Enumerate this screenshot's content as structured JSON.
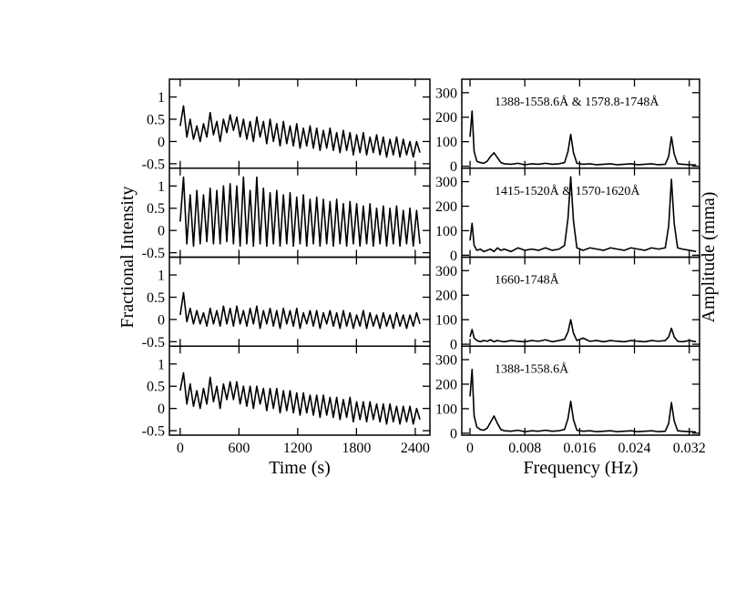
{
  "chart_data": [
    {
      "type": "line",
      "ylabel": "Fractional Intensity",
      "xlim": [
        -110,
        2550
      ],
      "ylim": [
        -0.6,
        1.4
      ],
      "xticks": [
        0,
        600,
        1200,
        1800,
        2400
      ],
      "yticks": [
        -0.5,
        0,
        0.5,
        1
      ],
      "xticklabels": false,
      "x": [
        0,
        34,
        68,
        102,
        136,
        170,
        204,
        238,
        272,
        306,
        340,
        374,
        408,
        442,
        476,
        510,
        544,
        578,
        612,
        646,
        680,
        714,
        748,
        782,
        816,
        850,
        884,
        918,
        952,
        986,
        1020,
        1054,
        1088,
        1122,
        1156,
        1190,
        1224,
        1258,
        1292,
        1326,
        1360,
        1394,
        1428,
        1462,
        1496,
        1530,
        1564,
        1598,
        1632,
        1666,
        1700,
        1734,
        1768,
        1802,
        1836,
        1870,
        1904,
        1938,
        1972,
        2006,
        2040,
        2074,
        2108,
        2142,
        2176,
        2210,
        2244,
        2278,
        2312,
        2346,
        2380,
        2414,
        2448
      ],
      "values": [
        0.35,
        0.8,
        0.1,
        0.5,
        0.05,
        0.35,
        0.0,
        0.4,
        0.1,
        0.65,
        0.15,
        0.45,
        0.0,
        0.5,
        0.2,
        0.6,
        0.25,
        0.55,
        0.1,
        0.5,
        0.05,
        0.45,
        0.0,
        0.55,
        0.1,
        0.45,
        -0.05,
        0.5,
        0.0,
        0.4,
        -0.1,
        0.45,
        -0.05,
        0.35,
        -0.1,
        0.4,
        -0.15,
        0.3,
        -0.1,
        0.35,
        -0.15,
        0.3,
        -0.2,
        0.25,
        -0.15,
        0.3,
        -0.2,
        0.2,
        -0.25,
        0.25,
        -0.2,
        0.2,
        -0.3,
        0.15,
        -0.25,
        0.2,
        -0.3,
        0.1,
        -0.25,
        0.15,
        -0.3,
        0.1,
        -0.35,
        0.05,
        -0.3,
        0.1,
        -0.35,
        0.05,
        -0.3,
        0.0,
        -0.35,
        0.0,
        -0.25
      ],
      "color": "#000000"
    },
    {
      "type": "line",
      "xlim": [
        -110,
        2550
      ],
      "ylim": [
        -0.6,
        1.4
      ],
      "xticks": [
        0,
        600,
        1200,
        1800,
        2400
      ],
      "yticks": [
        -0.5,
        0,
        0.5,
        1
      ],
      "xticklabels": false,
      "x": [
        0,
        34,
        68,
        102,
        136,
        170,
        204,
        238,
        272,
        306,
        340,
        374,
        408,
        442,
        476,
        510,
        544,
        578,
        612,
        646,
        680,
        714,
        748,
        782,
        816,
        850,
        884,
        918,
        952,
        986,
        1020,
        1054,
        1088,
        1122,
        1156,
        1190,
        1224,
        1258,
        1292,
        1326,
        1360,
        1394,
        1428,
        1462,
        1496,
        1530,
        1564,
        1598,
        1632,
        1666,
        1700,
        1734,
        1768,
        1802,
        1836,
        1870,
        1904,
        1938,
        1972,
        2006,
        2040,
        2074,
        2108,
        2142,
        2176,
        2210,
        2244,
        2278,
        2312,
        2346,
        2380,
        2414,
        2448
      ],
      "values": [
        0.2,
        1.2,
        -0.3,
        0.8,
        -0.35,
        0.9,
        -0.3,
        0.8,
        -0.25,
        0.95,
        -0.3,
        0.9,
        -0.3,
        1.0,
        -0.25,
        1.05,
        -0.3,
        1.0,
        -0.35,
        1.2,
        -0.3,
        0.9,
        -0.35,
        1.2,
        -0.3,
        0.95,
        -0.35,
        0.85,
        -0.3,
        0.9,
        -0.35,
        0.8,
        -0.3,
        0.85,
        -0.35,
        0.75,
        -0.3,
        0.8,
        -0.35,
        0.7,
        -0.3,
        0.75,
        -0.35,
        0.7,
        -0.3,
        0.65,
        -0.35,
        0.7,
        -0.3,
        0.6,
        -0.35,
        0.65,
        -0.3,
        0.6,
        -0.35,
        0.55,
        -0.3,
        0.6,
        -0.35,
        0.5,
        -0.3,
        0.55,
        -0.35,
        0.5,
        -0.3,
        0.55,
        -0.35,
        0.45,
        -0.3,
        0.5,
        -0.35,
        0.45,
        -0.3
      ],
      "color": "#000000"
    },
    {
      "type": "line",
      "xlim": [
        -110,
        2550
      ],
      "ylim": [
        -0.6,
        1.4
      ],
      "xticks": [
        0,
        600,
        1200,
        1800,
        2400
      ],
      "yticks": [
        -0.5,
        0,
        0.5,
        1
      ],
      "xticklabels": false,
      "x": [
        0,
        34,
        68,
        102,
        136,
        170,
        204,
        238,
        272,
        306,
        340,
        374,
        408,
        442,
        476,
        510,
        544,
        578,
        612,
        646,
        680,
        714,
        748,
        782,
        816,
        850,
        884,
        918,
        952,
        986,
        1020,
        1054,
        1088,
        1122,
        1156,
        1190,
        1224,
        1258,
        1292,
        1326,
        1360,
        1394,
        1428,
        1462,
        1496,
        1530,
        1564,
        1598,
        1632,
        1666,
        1700,
        1734,
        1768,
        1802,
        1836,
        1870,
        1904,
        1938,
        1972,
        2006,
        2040,
        2074,
        2108,
        2142,
        2176,
        2210,
        2244,
        2278,
        2312,
        2346,
        2380,
        2414,
        2448
      ],
      "values": [
        0.1,
        0.6,
        -0.05,
        0.25,
        -0.1,
        0.2,
        -0.1,
        0.15,
        -0.15,
        0.25,
        -0.1,
        0.2,
        -0.15,
        0.3,
        -0.1,
        0.25,
        -0.15,
        0.3,
        -0.1,
        0.2,
        -0.15,
        0.25,
        -0.1,
        0.3,
        -0.2,
        0.2,
        -0.1,
        0.25,
        -0.15,
        0.2,
        -0.2,
        0.25,
        -0.1,
        0.2,
        -0.15,
        0.25,
        -0.2,
        0.15,
        -0.1,
        0.2,
        -0.15,
        0.2,
        -0.2,
        0.15,
        -0.1,
        0.2,
        -0.15,
        0.15,
        -0.2,
        0.2,
        -0.15,
        0.15,
        -0.2,
        0.1,
        -0.15,
        0.2,
        -0.2,
        0.15,
        -0.15,
        0.1,
        -0.2,
        0.15,
        -0.15,
        0.1,
        -0.2,
        0.15,
        -0.15,
        0.1,
        -0.2,
        0.1,
        -0.15,
        0.15,
        -0.1
      ],
      "color": "#000000"
    },
    {
      "type": "line",
      "xlabel": "Time (s)",
      "xlim": [
        -110,
        2550
      ],
      "ylim": [
        -0.6,
        1.4
      ],
      "xticks": [
        0,
        600,
        1200,
        1800,
        2400
      ],
      "yticks": [
        -0.5,
        0,
        0.5,
        1
      ],
      "xticklabels": true,
      "x": [
        0,
        34,
        68,
        102,
        136,
        170,
        204,
        238,
        272,
        306,
        340,
        374,
        408,
        442,
        476,
        510,
        544,
        578,
        612,
        646,
        680,
        714,
        748,
        782,
        816,
        850,
        884,
        918,
        952,
        986,
        1020,
        1054,
        1088,
        1122,
        1156,
        1190,
        1224,
        1258,
        1292,
        1326,
        1360,
        1394,
        1428,
        1462,
        1496,
        1530,
        1564,
        1598,
        1632,
        1666,
        1700,
        1734,
        1768,
        1802,
        1836,
        1870,
        1904,
        1938,
        1972,
        2006,
        2040,
        2074,
        2108,
        2142,
        2176,
        2210,
        2244,
        2278,
        2312,
        2346,
        2380,
        2414,
        2448
      ],
      "values": [
        0.4,
        0.8,
        0.1,
        0.55,
        0.05,
        0.4,
        0.0,
        0.45,
        0.1,
        0.7,
        0.15,
        0.5,
        0.0,
        0.55,
        0.2,
        0.6,
        0.2,
        0.6,
        0.1,
        0.5,
        0.05,
        0.5,
        0.0,
        0.5,
        0.1,
        0.45,
        -0.05,
        0.45,
        0.0,
        0.45,
        -0.1,
        0.4,
        -0.05,
        0.4,
        -0.1,
        0.35,
        -0.15,
        0.35,
        -0.1,
        0.3,
        -0.15,
        0.3,
        -0.2,
        0.3,
        -0.15,
        0.25,
        -0.2,
        0.25,
        -0.25,
        0.2,
        -0.2,
        0.25,
        -0.3,
        0.15,
        -0.25,
        0.15,
        -0.3,
        0.15,
        -0.25,
        0.1,
        -0.3,
        0.1,
        -0.35,
        0.1,
        -0.3,
        0.05,
        -0.35,
        0.05,
        -0.3,
        0.05,
        -0.35,
        0.0,
        -0.25
      ],
      "color": "#000000"
    },
    {
      "type": "line",
      "ylabel": "Amplitude (mma)",
      "annotation": "1388-1558.6Å & 1578.8-1748Å",
      "xlim": [
        -0.0012,
        0.0335
      ],
      "ylim": [
        -8,
        355
      ],
      "xticks": [
        0,
        0.008,
        0.016,
        0.024,
        0.032
      ],
      "yticks": [
        0,
        100,
        200,
        300
      ],
      "xticklabels": false,
      "x": [
        0,
        0.0003,
        0.0006,
        0.001,
        0.0015,
        0.002,
        0.0025,
        0.003,
        0.0035,
        0.004,
        0.0045,
        0.005,
        0.006,
        0.007,
        0.008,
        0.009,
        0.01,
        0.011,
        0.012,
        0.013,
        0.0138,
        0.0143,
        0.0147,
        0.0151,
        0.0156,
        0.0165,
        0.0175,
        0.0185,
        0.0195,
        0.0205,
        0.0215,
        0.0225,
        0.0235,
        0.0245,
        0.0255,
        0.0265,
        0.0275,
        0.0285,
        0.029,
        0.0294,
        0.0298,
        0.0303,
        0.031,
        0.032,
        0.033
      ],
      "values": [
        120,
        225,
        60,
        20,
        15,
        12,
        20,
        40,
        55,
        35,
        15,
        10,
        8,
        12,
        6,
        10,
        8,
        12,
        8,
        10,
        15,
        60,
        130,
        55,
        12,
        8,
        10,
        6,
        8,
        10,
        6,
        8,
        10,
        6,
        8,
        10,
        6,
        8,
        40,
        120,
        50,
        10,
        8,
        6,
        5
      ],
      "color": "#000000"
    },
    {
      "type": "line",
      "annotation": "1415-1520Å  & 1570-1620Å",
      "xlim": [
        -0.0012,
        0.0335
      ],
      "ylim": [
        -8,
        355
      ],
      "xticks": [
        0,
        0.008,
        0.016,
        0.024,
        0.032
      ],
      "yticks": [
        0,
        100,
        200,
        300
      ],
      "xticklabels": false,
      "x": [
        0,
        0.0003,
        0.0006,
        0.001,
        0.0015,
        0.002,
        0.0025,
        0.003,
        0.0035,
        0.004,
        0.0045,
        0.005,
        0.006,
        0.007,
        0.008,
        0.009,
        0.01,
        0.011,
        0.012,
        0.013,
        0.0138,
        0.0143,
        0.0147,
        0.0151,
        0.0156,
        0.0165,
        0.0175,
        0.0185,
        0.0195,
        0.0205,
        0.0215,
        0.0225,
        0.0235,
        0.0245,
        0.0255,
        0.0265,
        0.0275,
        0.0285,
        0.029,
        0.0294,
        0.0298,
        0.0303,
        0.031,
        0.032,
        0.033
      ],
      "values": [
        60,
        130,
        40,
        20,
        25,
        15,
        20,
        25,
        15,
        30,
        20,
        25,
        15,
        30,
        20,
        25,
        20,
        30,
        20,
        25,
        40,
        150,
        320,
        140,
        30,
        20,
        30,
        25,
        20,
        30,
        25,
        20,
        30,
        25,
        20,
        30,
        25,
        30,
        120,
        310,
        130,
        30,
        25,
        20,
        15
      ],
      "color": "#000000"
    },
    {
      "type": "line",
      "annotation": "1660-1748Å",
      "xlim": [
        -0.0012,
        0.0335
      ],
      "ylim": [
        -8,
        355
      ],
      "xticks": [
        0,
        0.008,
        0.016,
        0.024,
        0.032
      ],
      "yticks": [
        0,
        100,
        200,
        300
      ],
      "xticklabels": false,
      "x": [
        0,
        0.0003,
        0.0006,
        0.001,
        0.0015,
        0.002,
        0.0025,
        0.003,
        0.0035,
        0.004,
        0.0045,
        0.005,
        0.006,
        0.007,
        0.008,
        0.009,
        0.01,
        0.011,
        0.012,
        0.013,
        0.0138,
        0.0143,
        0.0147,
        0.0151,
        0.0156,
        0.0165,
        0.0175,
        0.0185,
        0.0195,
        0.0205,
        0.0215,
        0.0225,
        0.0235,
        0.0245,
        0.0255,
        0.0265,
        0.0275,
        0.0285,
        0.029,
        0.0294,
        0.0298,
        0.0303,
        0.031,
        0.032,
        0.033
      ],
      "values": [
        30,
        60,
        25,
        15,
        10,
        15,
        12,
        18,
        10,
        15,
        12,
        10,
        15,
        12,
        10,
        15,
        12,
        18,
        10,
        15,
        20,
        50,
        100,
        45,
        15,
        25,
        12,
        15,
        10,
        15,
        12,
        10,
        15,
        12,
        10,
        15,
        12,
        15,
        30,
        65,
        30,
        12,
        10,
        15,
        10
      ],
      "color": "#000000"
    },
    {
      "type": "line",
      "xlabel": "Frequency (Hz)",
      "annotation": "1388-1558.6Å",
      "xlim": [
        -0.0012,
        0.0335
      ],
      "ylim": [
        -8,
        355
      ],
      "xticks": [
        0,
        0.008,
        0.016,
        0.024,
        0.032
      ],
      "yticks": [
        0,
        100,
        200,
        300
      ],
      "xticklabels": true,
      "x": [
        0,
        0.0003,
        0.0006,
        0.001,
        0.0015,
        0.002,
        0.0025,
        0.003,
        0.0035,
        0.004,
        0.0045,
        0.005,
        0.006,
        0.007,
        0.008,
        0.009,
        0.01,
        0.011,
        0.012,
        0.013,
        0.0138,
        0.0143,
        0.0147,
        0.0151,
        0.0156,
        0.0165,
        0.0175,
        0.0185,
        0.0195,
        0.0205,
        0.0215,
        0.0225,
        0.0235,
        0.0245,
        0.0255,
        0.0265,
        0.0275,
        0.0285,
        0.029,
        0.0294,
        0.0298,
        0.0303,
        0.031,
        0.032,
        0.033
      ],
      "values": [
        150,
        260,
        70,
        25,
        15,
        12,
        20,
        45,
        70,
        40,
        15,
        10,
        8,
        12,
        6,
        10,
        8,
        12,
        8,
        10,
        15,
        60,
        130,
        55,
        12,
        8,
        10,
        6,
        8,
        10,
        6,
        8,
        10,
        6,
        8,
        10,
        6,
        8,
        40,
        125,
        50,
        10,
        8,
        6,
        5
      ],
      "color": "#000000"
    }
  ]
}
